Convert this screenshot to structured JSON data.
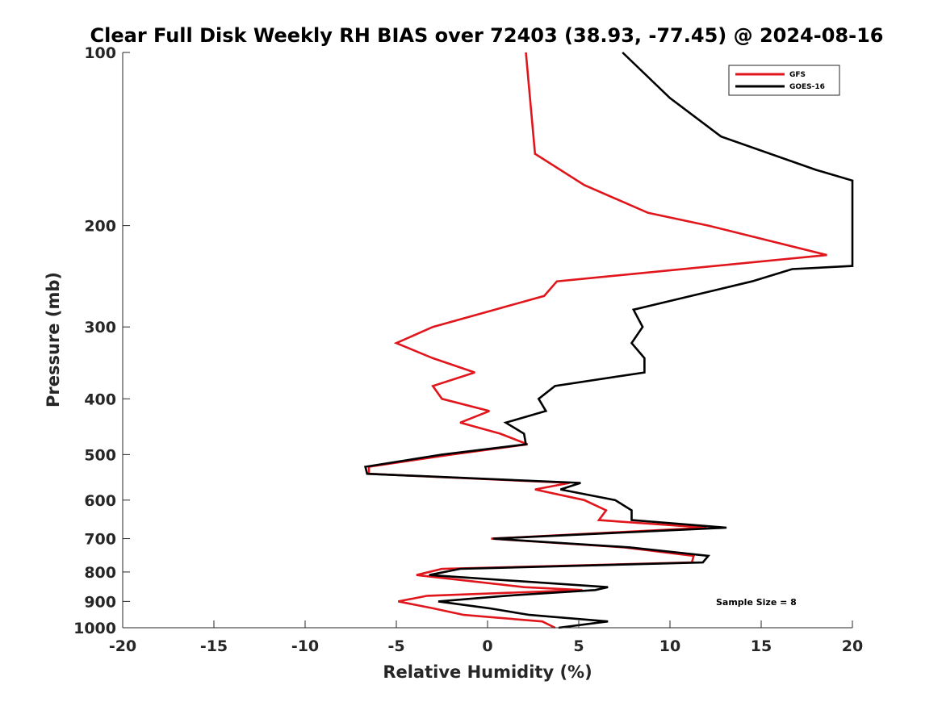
{
  "chart_data": {
    "type": "line",
    "title": "Clear Full Disk Weekly RH BIAS over 72403 (38.93, -77.45) @ 2024-08-16",
    "xlabel": "Relative Humidity (%)",
    "ylabel": "Pressure (mb)",
    "xlim": [
      -20,
      20
    ],
    "ylim": [
      100,
      1000
    ],
    "y_scale": "log",
    "y_reversed": true,
    "x_ticks": [
      -20,
      -15,
      -10,
      -5,
      0,
      5,
      10,
      15,
      20
    ],
    "x_tick_labels": [
      "-20",
      "-15",
      "-10",
      "-5",
      "0",
      "5",
      "10",
      "15",
      "20"
    ],
    "y_ticks": [
      100,
      200,
      300,
      400,
      500,
      600,
      700,
      800,
      900,
      1000
    ],
    "y_tick_labels": [
      "100",
      "200",
      "300",
      "400",
      "500",
      "600",
      "700",
      "800",
      "900",
      "1000"
    ],
    "grid": false,
    "legend_position": "top-right",
    "annotation": "Sample Size = 8",
    "series": [
      {
        "name": "GFS",
        "color": "#e0161c",
        "points": [
          [
            2.1,
            100
          ],
          [
            2.6,
            150
          ],
          [
            5.3,
            170
          ],
          [
            8.8,
            190
          ],
          [
            12.1,
            200
          ],
          [
            18.6,
            225
          ],
          [
            3.8,
            250
          ],
          [
            3.1,
            265
          ],
          [
            -3.0,
            300
          ],
          [
            -5.0,
            320
          ],
          [
            -3.0,
            340
          ],
          [
            -0.7,
            360
          ],
          [
            -3.0,
            380
          ],
          [
            -2.5,
            400
          ],
          [
            0.1,
            420
          ],
          [
            -1.5,
            440
          ],
          [
            0.7,
            460
          ],
          [
            2.2,
            480
          ],
          [
            -2.0,
            500
          ],
          [
            -6.5,
            525
          ],
          [
            -6.5,
            540
          ],
          [
            4.5,
            560
          ],
          [
            2.6,
            575
          ],
          [
            5.3,
            600
          ],
          [
            6.5,
            625
          ],
          [
            6.1,
            650
          ],
          [
            12.0,
            670
          ],
          [
            0.2,
            700
          ],
          [
            7.5,
            725
          ],
          [
            11.3,
            750
          ],
          [
            11.2,
            770
          ],
          [
            -2.5,
            790
          ],
          [
            -3.9,
            810
          ],
          [
            2.0,
            850
          ],
          [
            5.2,
            860
          ],
          [
            -3.3,
            880
          ],
          [
            -4.9,
            900
          ],
          [
            -3.0,
            925
          ],
          [
            -1.3,
            950
          ],
          [
            3.0,
            975
          ],
          [
            3.7,
            1000
          ]
        ]
      },
      {
        "name": "GOES-16",
        "color": "#000000",
        "points": [
          [
            7.4,
            100
          ],
          [
            10.0,
            120
          ],
          [
            12.8,
            140
          ],
          [
            18.0,
            160
          ],
          [
            20.0,
            167
          ],
          [
            20.0,
            235
          ],
          [
            16.7,
            238
          ],
          [
            14.5,
            250
          ],
          [
            8.0,
            280
          ],
          [
            8.5,
            300
          ],
          [
            7.9,
            320
          ],
          [
            8.6,
            340
          ],
          [
            8.6,
            360
          ],
          [
            3.7,
            380
          ],
          [
            2.8,
            400
          ],
          [
            3.2,
            420
          ],
          [
            1.0,
            440
          ],
          [
            2.0,
            460
          ],
          [
            2.1,
            480
          ],
          [
            -2.5,
            500
          ],
          [
            -6.7,
            525
          ],
          [
            -6.6,
            540
          ],
          [
            5.1,
            560
          ],
          [
            4.0,
            575
          ],
          [
            7.0,
            600
          ],
          [
            7.9,
            625
          ],
          [
            7.9,
            650
          ],
          [
            13.1,
            670
          ],
          [
            0.3,
            700
          ],
          [
            7.8,
            725
          ],
          [
            12.1,
            750
          ],
          [
            11.8,
            770
          ],
          [
            -1.5,
            790
          ],
          [
            -3.2,
            810
          ],
          [
            6.6,
            850
          ],
          [
            5.9,
            860
          ],
          [
            1.0,
            880
          ],
          [
            -2.7,
            900
          ],
          [
            0.1,
            925
          ],
          [
            2.3,
            950
          ],
          [
            6.6,
            975
          ],
          [
            3.9,
            1000
          ]
        ]
      }
    ]
  }
}
